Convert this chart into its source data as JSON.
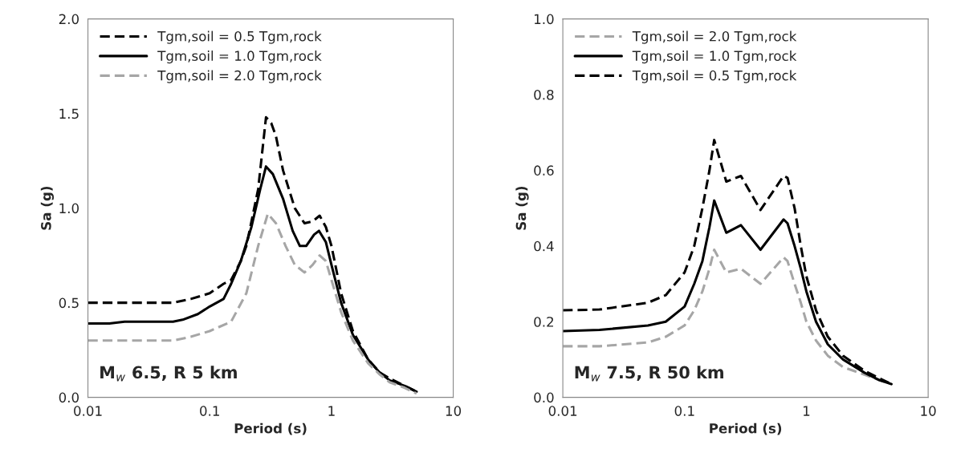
{
  "chart_data": [
    {
      "type": "line",
      "xlabel": "Period (s)",
      "ylabel": "Sa (g)",
      "log": "x",
      "xlim": [
        0.01,
        10
      ],
      "xticks": [
        0.01,
        0.1,
        1,
        10
      ],
      "ylim": [
        0,
        2
      ],
      "yticks": [
        {
          "value": 0,
          "label": "0.0"
        },
        {
          "value": 0.5,
          "label": "0.5"
        },
        {
          "value": 1,
          "label": "1.0"
        },
        {
          "value": 1.5,
          "label": "1.5"
        },
        {
          "value": 2,
          "label": "2.0"
        }
      ],
      "grid": false,
      "legend": "top left",
      "annotations": [
        "M$_{w}$ 6.5, R 5 km"
      ],
      "series": [
        {
          "name": "Tgm,soil = 0.5 Tgm,rock",
          "color": "#000000",
          "line_style": "dashed",
          "x": [
            0.01,
            0.02,
            0.05,
            0.07,
            0.1,
            0.13,
            0.15,
            0.18,
            0.2,
            0.25,
            0.29,
            0.32,
            0.35,
            0.4,
            0.5,
            0.6,
            0.7,
            0.8,
            0.9,
            1.0,
            1.2,
            1.5,
            2,
            2.5,
            3,
            4,
            5
          ],
          "values": [
            0.5,
            0.5,
            0.5,
            0.52,
            0.55,
            0.6,
            0.62,
            0.72,
            0.8,
            1.1,
            1.48,
            1.45,
            1.38,
            1.2,
            1.0,
            0.92,
            0.93,
            0.96,
            0.9,
            0.8,
            0.55,
            0.35,
            0.2,
            0.13,
            0.1,
            0.06,
            0.03
          ]
        },
        {
          "name": "Tgm,soil = 1.0 Tgm,rock",
          "color": "#000000",
          "line_style": "solid",
          "x": [
            0.01,
            0.015,
            0.02,
            0.05,
            0.06,
            0.08,
            0.1,
            0.13,
            0.15,
            0.18,
            0.22,
            0.26,
            0.29,
            0.33,
            0.4,
            0.48,
            0.55,
            0.62,
            0.72,
            0.79,
            0.9,
            1.0,
            1.2,
            1.5,
            2,
            2.5,
            3,
            4,
            5
          ],
          "values": [
            0.39,
            0.39,
            0.4,
            0.4,
            0.41,
            0.44,
            0.48,
            0.52,
            0.6,
            0.72,
            0.9,
            1.1,
            1.22,
            1.18,
            1.05,
            0.88,
            0.8,
            0.8,
            0.86,
            0.88,
            0.82,
            0.7,
            0.5,
            0.33,
            0.2,
            0.13,
            0.09,
            0.06,
            0.03
          ]
        },
        {
          "name": "Tgm,soil = 2.0 Tgm,rock",
          "color": "#a6a6a6",
          "line_style": "dashed",
          "x": [
            0.01,
            0.05,
            0.07,
            0.1,
            0.15,
            0.2,
            0.25,
            0.3,
            0.35,
            0.42,
            0.5,
            0.6,
            0.7,
            0.8,
            0.9,
            1.0,
            1.2,
            1.5,
            2,
            2.5,
            3,
            4,
            5
          ],
          "values": [
            0.3,
            0.3,
            0.32,
            0.35,
            0.4,
            0.55,
            0.8,
            0.97,
            0.92,
            0.8,
            0.7,
            0.66,
            0.7,
            0.75,
            0.72,
            0.62,
            0.45,
            0.3,
            0.18,
            0.12,
            0.08,
            0.05,
            0.02
          ]
        }
      ]
    },
    {
      "type": "line",
      "xlabel": "Period (s)",
      "ylabel": "Sa (g)",
      "log": "x",
      "xlim": [
        0.01,
        10
      ],
      "xticks": [
        0.01,
        0.1,
        1,
        10
      ],
      "ylim": [
        0,
        1
      ],
      "yticks": [
        {
          "value": 0,
          "label": "0.0"
        },
        {
          "value": 0.2,
          "label": "0.2"
        },
        {
          "value": 0.4,
          "label": "0.4"
        },
        {
          "value": 0.6,
          "label": "0.6"
        },
        {
          "value": 0.8,
          "label": "0.8"
        },
        {
          "value": 1,
          "label": "1.0"
        }
      ],
      "grid": false,
      "legend": "top left",
      "annotations": [
        "M$_{w}$ 7.5, R 50 km"
      ],
      "series": [
        {
          "name": "Tgm,soil = 2.0 Tgm,rock",
          "color": "#a6a6a6",
          "line_style": "dashed",
          "x": [
            0.01,
            0.02,
            0.05,
            0.07,
            0.1,
            0.12,
            0.14,
            0.16,
            0.175,
            0.22,
            0.29,
            0.42,
            0.65,
            0.7,
            0.8,
            0.9,
            1.0,
            1.2,
            1.5,
            2,
            3,
            4,
            5
          ],
          "values": [
            0.135,
            0.135,
            0.145,
            0.16,
            0.19,
            0.23,
            0.28,
            0.34,
            0.39,
            0.33,
            0.34,
            0.3,
            0.37,
            0.36,
            0.3,
            0.25,
            0.2,
            0.15,
            0.11,
            0.08,
            0.06,
            0.045,
            0.035
          ]
        },
        {
          "name": "Tgm,soil = 1.0 Tgm,rock",
          "color": "#000000",
          "line_style": "solid",
          "x": [
            0.01,
            0.02,
            0.05,
            0.07,
            0.1,
            0.12,
            0.14,
            0.16,
            0.175,
            0.22,
            0.29,
            0.42,
            0.65,
            0.7,
            0.8,
            0.9,
            1.0,
            1.2,
            1.5,
            2,
            3,
            4,
            5
          ],
          "values": [
            0.175,
            0.178,
            0.19,
            0.2,
            0.24,
            0.3,
            0.36,
            0.45,
            0.52,
            0.435,
            0.455,
            0.39,
            0.47,
            0.46,
            0.4,
            0.34,
            0.28,
            0.2,
            0.14,
            0.1,
            0.065,
            0.045,
            0.035
          ]
        },
        {
          "name": "Tgm,soil = 0.5 Tgm,rock",
          "color": "#000000",
          "line_style": "dashed",
          "x": [
            0.01,
            0.02,
            0.05,
            0.07,
            0.1,
            0.12,
            0.14,
            0.16,
            0.175,
            0.22,
            0.29,
            0.42,
            0.65,
            0.7,
            0.8,
            0.9,
            1.0,
            1.2,
            1.5,
            2,
            3,
            4,
            5
          ],
          "values": [
            0.23,
            0.232,
            0.25,
            0.27,
            0.33,
            0.4,
            0.5,
            0.6,
            0.68,
            0.57,
            0.585,
            0.495,
            0.585,
            0.58,
            0.5,
            0.4,
            0.32,
            0.23,
            0.16,
            0.11,
            0.07,
            0.05,
            0.035
          ]
        }
      ]
    }
  ]
}
